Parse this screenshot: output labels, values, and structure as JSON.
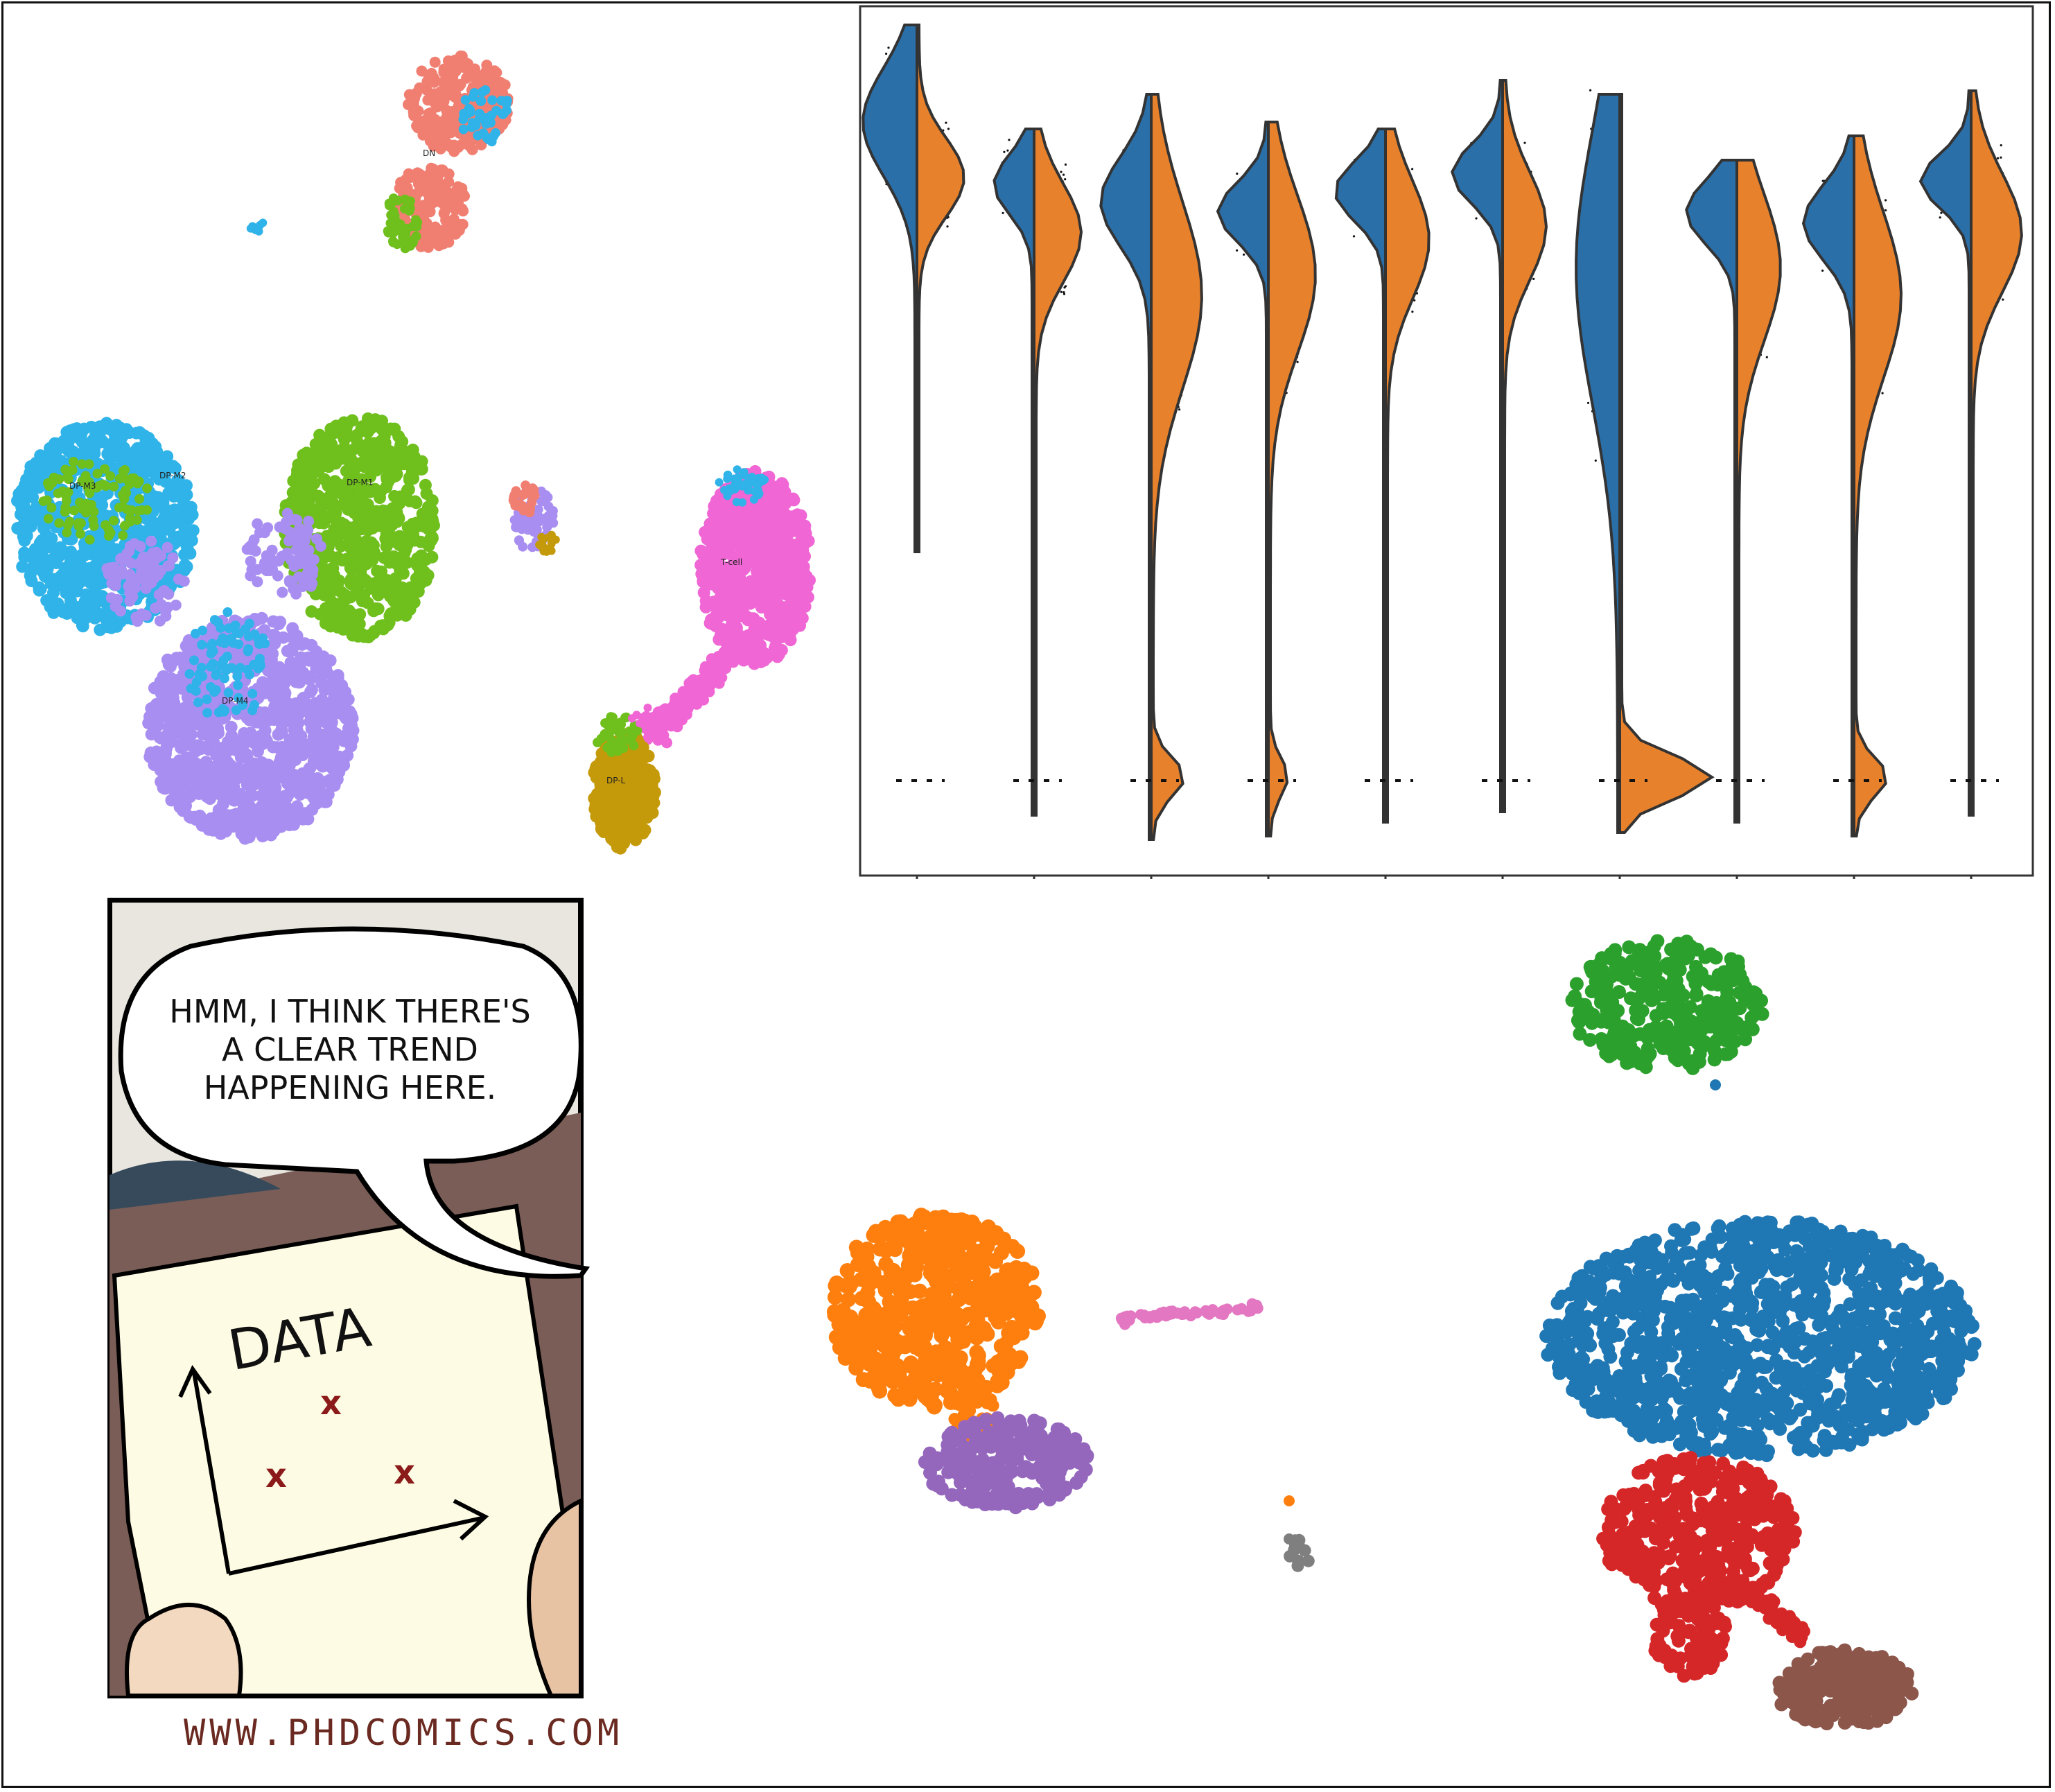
{
  "colors": {
    "salmon": "#f07f72",
    "sky": "#2fb3e8",
    "lime": "#6fbf1d",
    "lavender": "#a98ef2",
    "magenta": "#ef66d4",
    "mustard": "#c59a0a",
    "blue": "#1f77b4",
    "orange": "#ff7f0e",
    "green": "#2ca02c",
    "red": "#d62728",
    "purple": "#9467bd",
    "brown": "#8c564b",
    "pink": "#e377c2",
    "gray": "#7f7f7f",
    "violin_blue": "#2b6fa8",
    "violin_orange": "#e8812b",
    "comic_paper": "#fdfbe3",
    "comic_brown": "#7a5d56",
    "comic_red": "#8b1a1a"
  },
  "umap_top": {
    "cluster_labels": [
      {
        "text": "DN",
        "color": "salmon"
      },
      {
        "text": "DP-M3",
        "color": "sky"
      },
      {
        "text": "DP-M2",
        "color": "sky"
      },
      {
        "text": "DP-M1",
        "color": "lime"
      },
      {
        "text": "DP-M4",
        "color": "lavender"
      },
      {
        "text": "T-cell",
        "color": "magenta"
      },
      {
        "text": "DP-L",
        "color": "mustard"
      }
    ]
  },
  "violin_plot": {
    "chart_data": {
      "type": "split-violin",
      "n_genes": 10,
      "series": [
        {
          "name": "",
          "color": "violin_blue"
        },
        {
          "name": "",
          "color": "violin_orange"
        }
      ],
      "grid": false
    }
  },
  "comic": {
    "speech": [
      "HMM, I THINK THERE'S",
      "A CLEAR TREND",
      "HAPPENING HERE."
    ],
    "paper_title": "DATA",
    "footer": "WWW.PHDCOMICS.COM",
    "marks": [
      "x",
      "x",
      "x"
    ]
  },
  "umap_bottom": {
    "clusters": [
      {
        "color": "green"
      },
      {
        "color": "orange"
      },
      {
        "color": "pink"
      },
      {
        "color": "purple"
      },
      {
        "color": "gray"
      },
      {
        "color": "blue"
      },
      {
        "color": "red"
      },
      {
        "color": "brown"
      }
    ]
  }
}
